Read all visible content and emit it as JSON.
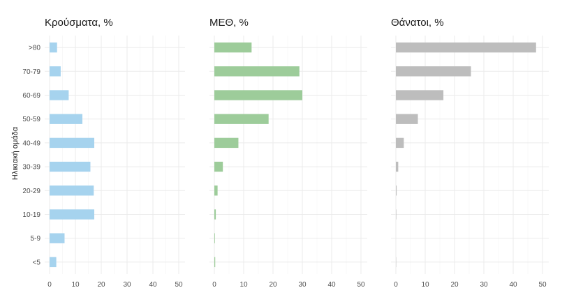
{
  "chart_data": {
    "type": "bar",
    "orientation": "horizontal",
    "ylabel": "Ηλικιακή ομάδα",
    "categories": [
      ">80",
      "70-79",
      "60-69",
      "50-59",
      "40-49",
      "30-39",
      "20-29",
      "10-19",
      "5-9",
      "<5"
    ],
    "xlim": [
      0,
      50
    ],
    "xticks": [
      0,
      10,
      20,
      30,
      40,
      50
    ],
    "grid": true,
    "legend": "none",
    "panels": [
      {
        "title": "Κρούσματα, %",
        "color": "#a6d3ee",
        "values": [
          2.9,
          4.3,
          7.4,
          12.7,
          17.3,
          15.8,
          17.1,
          17.3,
          5.8,
          2.6
        ]
      },
      {
        "title": "ΜΕΘ, %",
        "color": "#9dcc9a",
        "values": [
          12.7,
          29.0,
          30.0,
          18.5,
          8.2,
          2.9,
          1.1,
          0.5,
          0.2,
          0.3
        ]
      },
      {
        "title": "Θάνατοι, %",
        "color": "#bdbdbd",
        "values": [
          47.8,
          25.6,
          16.2,
          7.5,
          2.7,
          0.8,
          0.25,
          0.15,
          0.0,
          0.1
        ]
      }
    ]
  }
}
